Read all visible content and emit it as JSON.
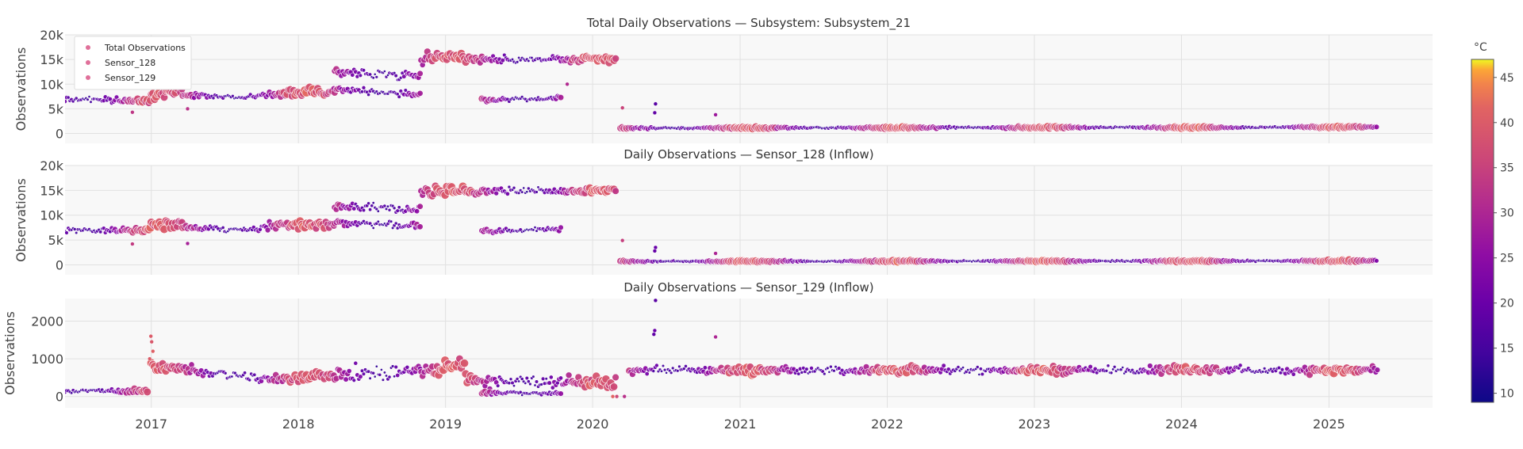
{
  "chart_data": {
    "type": "scatter",
    "x_range": [
      "2016-06-01",
      "2025-09-15"
    ],
    "x_ticks": [
      "2017",
      "2018",
      "2019",
      "2020",
      "2021",
      "2022",
      "2023",
      "2024",
      "2025"
    ],
    "grid": true,
    "marker": "circle, size and color by temperature",
    "colorbar": {
      "title": "°C",
      "range": [
        9,
        47
      ],
      "ticks": [
        "10",
        "15",
        "20",
        "25",
        "30",
        "35",
        "40",
        "45"
      ],
      "colorscale": "plasma"
    },
    "legend": {
      "placement": "top-left",
      "entries": [
        "Total Observations",
        "Sensor_128",
        "Sensor_129"
      ],
      "color": "#e0709a"
    },
    "panels": [
      {
        "title": "Total Daily Observations — Subsystem: Subsystem_21",
        "ylabel": "Observations",
        "ylim": [
          -2000,
          20000
        ],
        "yticks": [
          "0",
          "5k",
          "10k",
          "15k",
          "20k"
        ],
        "segments": [
          {
            "from": "2016-06-01",
            "to": "2016-12-31",
            "y_start": 7000,
            "y_end": 6600,
            "spread": 800
          },
          {
            "from": "2017-01-01",
            "to": "2017-03-20",
            "y_start": 8000,
            "y_end": 8800,
            "spread": 1500
          },
          {
            "from": "2017-03-20",
            "to": "2017-09-30",
            "y_start": 7900,
            "y_end": 7200,
            "spread": 800
          },
          {
            "from": "2017-10-01",
            "to": "2018-03-31",
            "y_start": 8000,
            "y_end": 8600,
            "spread": 1200
          },
          {
            "from": "2018-04-01",
            "to": "2018-10-31",
            "y_start": 12500,
            "y_end": 11800,
            "spread": 1500
          },
          {
            "from": "2018-04-01",
            "to": "2018-10-31",
            "y_start": 9000,
            "y_end": 8000,
            "spread": 1000
          },
          {
            "from": "2018-11-01",
            "to": "2019-02-20",
            "y_start": 15000,
            "y_end": 16000,
            "spread": 1800
          },
          {
            "from": "2019-02-20",
            "to": "2020-03-01",
            "y_start": 15000,
            "y_end": 15000,
            "spread": 1000
          },
          {
            "from": "2019-04-01",
            "to": "2019-10-15",
            "y_start": 6800,
            "y_end": 7200,
            "spread": 600
          },
          {
            "from": "2020-03-10",
            "to": "2025-05-01",
            "y_start": 1100,
            "y_end": 1300,
            "spread": 250
          }
        ],
        "outliers": [
          [
            "2020-03-15",
            5200
          ],
          [
            "2020-06-05",
            6000
          ],
          [
            "2020-06-03",
            4200
          ],
          [
            "2020-11-01",
            3800
          ],
          [
            "2019-10-30",
            10000
          ],
          [
            "2017-04-01",
            5000
          ],
          [
            "2016-11-15",
            4300
          ]
        ]
      },
      {
        "title": "Daily Observations — Sensor_128 (Inflow)",
        "ylabel": "Observations",
        "ylim": [
          -2000,
          20000
        ],
        "yticks": [
          "0",
          "5k",
          "10k",
          "15k",
          "20k"
        ],
        "segments": [
          {
            "from": "2016-06-01",
            "to": "2016-12-31",
            "y_start": 6900,
            "y_end": 7000,
            "spread": 800
          },
          {
            "from": "2017-01-01",
            "to": "2017-03-20",
            "y_start": 7800,
            "y_end": 8500,
            "spread": 1400
          },
          {
            "from": "2017-03-20",
            "to": "2017-09-30",
            "y_start": 7500,
            "y_end": 7000,
            "spread": 800
          },
          {
            "from": "2017-10-01",
            "to": "2018-03-31",
            "y_start": 7800,
            "y_end": 8300,
            "spread": 1200
          },
          {
            "from": "2018-04-01",
            "to": "2018-10-31",
            "y_start": 12000,
            "y_end": 11000,
            "spread": 1500
          },
          {
            "from": "2018-04-01",
            "to": "2018-10-31",
            "y_start": 8500,
            "y_end": 7800,
            "spread": 1000
          },
          {
            "from": "2018-11-01",
            "to": "2019-02-20",
            "y_start": 14500,
            "y_end": 15500,
            "spread": 1800
          },
          {
            "from": "2019-02-20",
            "to": "2020-03-01",
            "y_start": 14800,
            "y_end": 15000,
            "spread": 1000
          },
          {
            "from": "2019-04-01",
            "to": "2019-10-15",
            "y_start": 6800,
            "y_end": 7200,
            "spread": 600
          },
          {
            "from": "2020-03-10",
            "to": "2025-05-01",
            "y_start": 700,
            "y_end": 800,
            "spread": 200
          }
        ],
        "outliers": [
          [
            "2020-03-15",
            4900
          ],
          [
            "2020-06-05",
            3500
          ],
          [
            "2020-06-03",
            2800
          ],
          [
            "2020-11-01",
            2300
          ],
          [
            "2017-04-01",
            4300
          ],
          [
            "2016-11-15",
            4200
          ]
        ]
      },
      {
        "title": "Daily Observations — Sensor_129 (Inflow)",
        "ylabel": "Observations",
        "ylim": [
          -300,
          2600
        ],
        "yticks": [
          "0",
          "1000",
          "2000"
        ],
        "segments": [
          {
            "from": "2016-06-01",
            "to": "2016-12-25",
            "y_start": 150,
            "y_end": 150,
            "spread": 80
          },
          {
            "from": "2017-01-01",
            "to": "2017-09-30",
            "y_start": 800,
            "y_end": 500,
            "spread": 200
          },
          {
            "from": "2017-10-01",
            "to": "2018-03-31",
            "y_start": 450,
            "y_end": 550,
            "spread": 150
          },
          {
            "from": "2018-04-01",
            "to": "2018-10-31",
            "y_start": 600,
            "y_end": 650,
            "spread": 300
          },
          {
            "from": "2018-11-01",
            "to": "2019-02-20",
            "y_start": 650,
            "y_end": 900,
            "spread": 250
          },
          {
            "from": "2019-02-20",
            "to": "2020-03-01",
            "y_start": 450,
            "y_end": 350,
            "spread": 250
          },
          {
            "from": "2019-04-01",
            "to": "2019-10-15",
            "y_start": 100,
            "y_end": 80,
            "spread": 60
          },
          {
            "from": "2020-04-01",
            "to": "2025-05-01",
            "y_start": 700,
            "y_end": 700,
            "spread": 150
          }
        ],
        "outliers": [
          [
            "2016-12-31",
            1600
          ],
          [
            "2017-01-02",
            1450
          ],
          [
            "2017-01-05",
            1200
          ],
          [
            "2016-12-28",
            1000
          ],
          [
            "2020-06-05",
            2550
          ],
          [
            "2020-06-03",
            1750
          ],
          [
            "2020-06-01",
            1650
          ],
          [
            "2020-11-01",
            1580
          ],
          [
            "2020-03-01",
            0
          ],
          [
            "2020-02-20",
            0
          ],
          [
            "2020-03-20",
            0
          ]
        ]
      }
    ]
  }
}
